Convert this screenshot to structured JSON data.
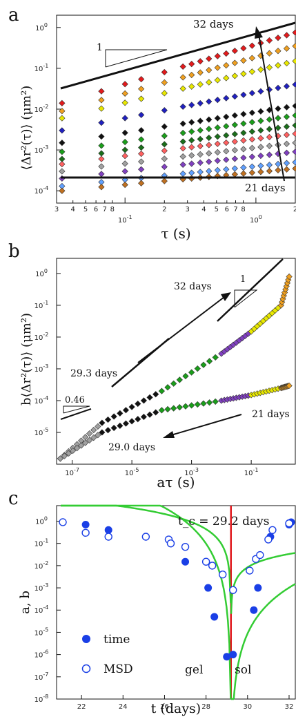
{
  "panels": {
    "a": {
      "label": "a",
      "ylabel": "⟨Δr²(τ)⟩ (μm²)",
      "xlabel": "τ (s)",
      "annot_top": "32 days",
      "annot_bottom": "21 days",
      "slope_label": "1"
    },
    "b": {
      "label": "b",
      "ylabel": "b⟨Δr²(τ)⟩ (μm²)",
      "xlabel": "aτ (s)",
      "annot_32": "32 days",
      "annot_293": "29.3 days",
      "annot_21": "21 days",
      "annot_290": "29.0 days",
      "slope_1": "1",
      "slope_046": "0.46"
    },
    "c": {
      "label": "c",
      "ylabel": "a, b",
      "xlabel": "t (days)",
      "tc_label": "t_c = 29.2 days",
      "legend_time": "time",
      "legend_msd": "MSD",
      "gel_label": "gel",
      "sol_label": "sol"
    }
  },
  "colors": {
    "axis": "#111111",
    "fit": "#33cc33",
    "tc_line": "#e0191d",
    "points": "#1a3fe6"
  },
  "chart_data": [
    {
      "panel": "a",
      "type": "scatter",
      "x_scale": "log",
      "y_scale": "log",
      "xlim": [
        0.03,
        2
      ],
      "ylim": [
        5e-05,
        2
      ],
      "xticks_major": [
        "10^-1",
        "10^0"
      ],
      "xticks_minor": [
        "3",
        "4",
        "5",
        "6",
        "7",
        "8",
        "2",
        "3",
        "4",
        "5",
        "6",
        "7",
        "8",
        "2"
      ],
      "yticks": [
        "10^-4",
        "10^-3",
        "10^-2",
        "10^-1",
        "10^0"
      ],
      "series_colors": [
        "#e31a1c",
        "#f0a020",
        "#e8e800",
        "#2020c0",
        "#111111",
        "#1a9e1a",
        "#1a6e1a",
        "#ff6060",
        "#a0a0a0",
        "#8040c0",
        "#60a0ff",
        "#c07020"
      ],
      "series": [
        {
          "values_at": [
            0.033,
            2
          ],
          "y": [
            0.014,
            0.75
          ]
        },
        {
          "values_at": [
            0.033,
            2
          ],
          "y": [
            0.009,
            0.35
          ]
        },
        {
          "values_at": [
            0.033,
            2
          ],
          "y": [
            0.006,
            0.15
          ]
        },
        {
          "values_at": [
            0.033,
            2
          ],
          "y": [
            0.003,
            0.04
          ]
        },
        {
          "values_at": [
            0.033,
            2
          ],
          "y": [
            0.0015,
            0.012
          ]
        },
        {
          "values_at": [
            0.033,
            2
          ],
          "y": [
            0.0009,
            0.007
          ]
        },
        {
          "values_at": [
            0.033,
            2
          ],
          "y": [
            0.0006,
            0.004
          ]
        },
        {
          "values_at": [
            0.033,
            2
          ],
          "y": [
            0.00045,
            0.0025
          ]
        },
        {
          "values_at": [
            0.033,
            2
          ],
          "y": [
            0.0003,
            0.0015
          ]
        },
        {
          "values_at": [
            0.033,
            2
          ],
          "y": [
            0.0002,
            0.0009
          ]
        },
        {
          "values_at": [
            0.033,
            2
          ],
          "y": [
            0.00013,
            0.0005
          ]
        },
        {
          "values_at": [
            0.033,
            2
          ],
          "y": [
            0.0001,
            0.00035
          ]
        }
      ],
      "guide_top": {
        "x": [
          0.03,
          2
        ],
        "y": [
          0.018,
          0.8
        ]
      },
      "guide_bottom": {
        "x": [
          0.03,
          2
        ],
        "y": [
          7e-05,
          7e-05
        ]
      }
    },
    {
      "panel": "b",
      "type": "scatter",
      "x_scale": "log",
      "y_scale": "log",
      "xlim": [
        3e-08,
        3
      ],
      "ylim": [
        1e-06,
        3
      ],
      "xticks": [
        "10^-7",
        "10^-5",
        "10^-3",
        "10^-1"
      ],
      "yticks": [
        "10^-5",
        "10^-4",
        "10^-3",
        "10^-2",
        "10^-1",
        "10^0"
      ],
      "branches": [
        {
          "name": "gel",
          "x": [
            4e-08,
            1e-06,
            0.0001,
            0.01,
            0.1,
            1.0,
            2.0
          ],
          "y": [
            1.5e-06,
            2e-05,
            0.0002,
            0.003,
            0.015,
            0.1,
            1.0
          ]
        },
        {
          "name": "sol",
          "x": [
            4e-08,
            1e-06,
            0.0001,
            0.01,
            0.1,
            1.0,
            2.0
          ],
          "y": [
            1.5e-06,
            1e-05,
            5e-05,
            0.0001,
            0.00015,
            0.00025,
            0.0003
          ]
        }
      ]
    },
    {
      "panel": "c",
      "type": "scatter",
      "x_scale": "linear",
      "y_scale": "log",
      "xlim": [
        20.8,
        32.3
      ],
      "ylim": [
        1e-08,
        5
      ],
      "xticks": [
        22,
        24,
        26,
        28,
        30,
        32
      ],
      "yticks": [
        "10^-8",
        "10^-7",
        "10^-6",
        "10^-5",
        "10^-4",
        "10^-3",
        "10^-2",
        "10^-1",
        "10^0"
      ],
      "tc": 29.2,
      "time": {
        "x": [
          22.2,
          23.3,
          26.3,
          27.0,
          28.1,
          28.4,
          29.0,
          29.3,
          30.3,
          30.5,
          31.1,
          32.0,
          32.1
        ],
        "y": [
          0.7,
          0.4,
          0.1,
          0.015,
          0.001,
          5e-05,
          8e-07,
          1e-06,
          0.0001,
          0.001,
          0.2,
          0.7,
          0.9
        ]
      },
      "msd": {
        "x": [
          21.1,
          22.2,
          23.3,
          25.1,
          26.2,
          26.3,
          27.0,
          28.0,
          28.3,
          28.8,
          29.3,
          30.1,
          30.4,
          30.6,
          31.0,
          31.2,
          32.0
        ],
        "y": [
          0.9,
          0.3,
          0.2,
          0.2,
          0.15,
          0.1,
          0.07,
          0.015,
          0.01,
          0.004,
          0.0008,
          0.006,
          0.02,
          0.03,
          0.15,
          0.4,
          0.8
        ]
      }
    }
  ]
}
